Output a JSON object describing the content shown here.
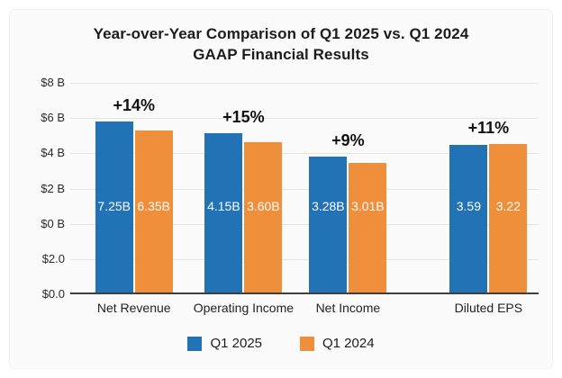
{
  "chart_data": {
    "type": "bar",
    "title": "Year-over-Year Comparison of Q1 2025 vs. Q1 2024 GAAP Financial Results",
    "title_line1": "Year-over-Year Comparison of Q1 2025 vs. Q1 2024",
    "title_line2": "GAAP Financial Results",
    "categories": [
      "Net Revenue",
      "Operating Income",
      "Net Income",
      "Diluted EPS"
    ],
    "series": [
      {
        "name": "Q1 2025",
        "color": "#2273B6",
        "values": [
          7.25,
          4.15,
          3.28,
          3.59
        ],
        "bar_labels": [
          "7.25B",
          "4.15B",
          "3.28B",
          "3.59"
        ],
        "heights_pct": [
          80.9,
          75.3,
          64.3,
          69.8
        ]
      },
      {
        "name": "Q1 2024",
        "color": "#EF8E3B",
        "values": [
          6.35,
          3.6,
          3.01,
          3.22
        ],
        "bar_labels": [
          "6.35B",
          "3.60B",
          "3.01B",
          "3.22"
        ],
        "heights_pct": [
          76.6,
          71.1,
          61.3,
          70.2
        ]
      }
    ],
    "pct_change": [
      "+14%",
      "+15%",
      "+9%",
      "+11%"
    ],
    "y_ticks_top_to_bottom": [
      "$8 B",
      "$6 B",
      "$4 B",
      "$2 B",
      "$0 B",
      "$2.0",
      "$0.0"
    ],
    "group_centers_pct": [
      13.6,
      37.0,
      59.3,
      89.3
    ],
    "grid": true,
    "legend_position": "bottom",
    "legend": [
      "Q1 2025",
      "Q1 2024"
    ]
  },
  "colors": {
    "blue_series": "#2273B6",
    "orange_series": "#EF8E3B",
    "grid_line": "#E5E5E5",
    "axis_line": "#3F3F3F",
    "panel_background": "#FBFBFB",
    "bar_value_text": "#FFFFFF",
    "title_text": "#1C1C1C"
  }
}
